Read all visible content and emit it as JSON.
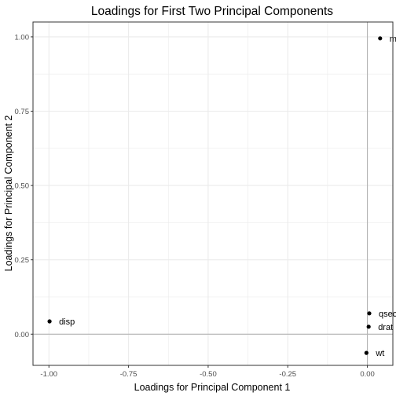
{
  "chart_data": {
    "type": "scatter",
    "title": "Loadings for First Two Principal Components",
    "xlabel": "Loadings for Principal Component 1",
    "ylabel": "Loadings for Principal Component 2",
    "xlim": [
      -1.05,
      0.08
    ],
    "ylim": [
      -0.105,
      1.05
    ],
    "xticks": [
      -1.0,
      -0.75,
      -0.5,
      -0.25,
      0.0
    ],
    "xtick_labels": [
      "-1.00",
      "-0.75",
      "-0.50",
      "-0.25",
      "0.00"
    ],
    "yticks": [
      0.0,
      0.25,
      0.5,
      0.75,
      1.0
    ],
    "ytick_labels": [
      "0.00",
      "0.25",
      "0.50",
      "0.75",
      "1.00"
    ],
    "grid": true,
    "reference_lines": {
      "x": 0,
      "y": 0
    },
    "points": [
      {
        "label": "mpg",
        "x": 0.04,
        "y": 0.995
      },
      {
        "label": "disp",
        "x": -0.998,
        "y": 0.043
      },
      {
        "label": "qsec",
        "x": 0.006,
        "y": 0.07
      },
      {
        "label": "drat",
        "x": 0.004,
        "y": 0.025
      },
      {
        "label": "wt",
        "x": -0.003,
        "y": -0.063
      }
    ],
    "colors": {
      "panel_border": "#333333",
      "grid": "#ebebeb",
      "reference_line": "#b3b3b3",
      "point": "#000000"
    }
  }
}
